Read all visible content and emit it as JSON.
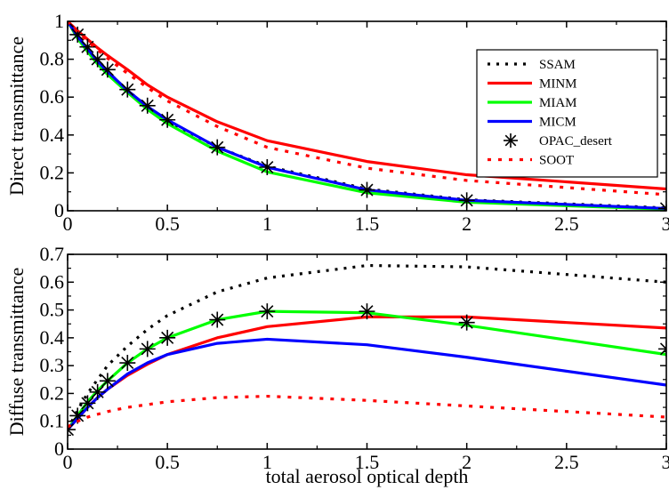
{
  "chart_data": [
    {
      "type": "line",
      "ylabel": "Direct transmittance",
      "xlabel": "",
      "xlim": [
        0,
        3
      ],
      "ylim": [
        0,
        1
      ],
      "x_ticks": [
        {
          "value": 0,
          "label": "0"
        },
        {
          "value": 0.5,
          "label": "0.5"
        },
        {
          "value": 1,
          "label": "1"
        },
        {
          "value": 1.5,
          "label": "1.5"
        },
        {
          "value": 2,
          "label": "2"
        },
        {
          "value": 2.5,
          "label": "2.5"
        },
        {
          "value": 3,
          "label": "3"
        }
      ],
      "y_ticks": [
        {
          "value": 0,
          "label": "0"
        },
        {
          "value": 0.2,
          "label": "0.2"
        },
        {
          "value": 0.4,
          "label": "0.4"
        },
        {
          "value": 0.6,
          "label": "0.6"
        },
        {
          "value": 0.8,
          "label": "0.8"
        },
        {
          "value": 1,
          "label": "1"
        }
      ],
      "legend_position": "right",
      "series": [
        {
          "name": "SSAM",
          "color": "#000000",
          "style": "dotted",
          "x": [
            0,
            0.05,
            0.1,
            0.15,
            0.2,
            0.3,
            0.4,
            0.5,
            0.75,
            1,
            1.5,
            2,
            3
          ],
          "y": [
            1.0,
            0.92,
            0.855,
            0.79,
            0.735,
            0.635,
            0.55,
            0.475,
            0.335,
            0.235,
            0.115,
            0.058,
            0.015
          ]
        },
        {
          "name": "MINM",
          "color": "#ff0000",
          "style": "solid",
          "x": [
            0,
            0.05,
            0.1,
            0.15,
            0.2,
            0.3,
            0.4,
            0.5,
            0.75,
            1,
            1.5,
            2,
            3
          ],
          "y": [
            1.0,
            0.95,
            0.905,
            0.86,
            0.82,
            0.745,
            0.665,
            0.6,
            0.47,
            0.37,
            0.26,
            0.19,
            0.115
          ]
        },
        {
          "name": "MIAM",
          "color": "#00ff00",
          "style": "solid",
          "x": [
            0,
            0.05,
            0.1,
            0.15,
            0.2,
            0.3,
            0.4,
            0.5,
            0.75,
            1,
            1.5,
            2,
            3
          ],
          "y": [
            1.0,
            0.91,
            0.84,
            0.775,
            0.72,
            0.625,
            0.535,
            0.46,
            0.315,
            0.205,
            0.095,
            0.045,
            0.008
          ]
        },
        {
          "name": "MICM",
          "color": "#0000ff",
          "style": "solid",
          "x": [
            0,
            0.05,
            0.1,
            0.15,
            0.2,
            0.3,
            0.4,
            0.5,
            0.75,
            1,
            1.5,
            2,
            3
          ],
          "y": [
            1.0,
            0.92,
            0.855,
            0.79,
            0.735,
            0.635,
            0.55,
            0.48,
            0.335,
            0.23,
            0.11,
            0.055,
            0.012
          ]
        },
        {
          "name": "OPAC_desert",
          "color": "#000000",
          "style": "markers",
          "x": [
            0,
            0.05,
            0.1,
            0.15,
            0.2,
            0.3,
            0.4,
            0.5,
            0.75,
            1,
            1.5,
            2,
            3
          ],
          "y": [
            1.0,
            0.93,
            0.865,
            0.8,
            0.745,
            0.64,
            0.555,
            0.48,
            0.335,
            0.23,
            0.11,
            0.055,
            0.012
          ]
        },
        {
          "name": "SOOT",
          "color": "#ff0000",
          "style": "dotted",
          "x": [
            0,
            0.05,
            0.1,
            0.15,
            0.2,
            0.3,
            0.4,
            0.5,
            0.75,
            1,
            1.5,
            2,
            3
          ],
          "y": [
            1.0,
            0.945,
            0.895,
            0.85,
            0.805,
            0.725,
            0.65,
            0.58,
            0.445,
            0.335,
            0.225,
            0.16,
            0.085
          ]
        }
      ]
    },
    {
      "type": "line",
      "ylabel": "Diffuse transmittance",
      "xlabel": "total aerosol optical depth",
      "xlim": [
        0,
        3
      ],
      "ylim": [
        0,
        0.7
      ],
      "x_ticks": [
        {
          "value": 0,
          "label": "0"
        },
        {
          "value": 0.5,
          "label": "0.5"
        },
        {
          "value": 1,
          "label": "1"
        },
        {
          "value": 1.5,
          "label": "1.5"
        },
        {
          "value": 2,
          "label": "2"
        },
        {
          "value": 2.5,
          "label": "2.5"
        },
        {
          "value": 3,
          "label": "3"
        }
      ],
      "y_ticks": [
        {
          "value": 0,
          "label": "0"
        },
        {
          "value": 0.1,
          "label": "0.1"
        },
        {
          "value": 0.2,
          "label": "0.2"
        },
        {
          "value": 0.3,
          "label": "0.3"
        },
        {
          "value": 0.4,
          "label": "0.4"
        },
        {
          "value": 0.5,
          "label": "0.5"
        },
        {
          "value": 0.6,
          "label": "0.6"
        },
        {
          "value": 0.7,
          "label": "0.7"
        }
      ],
      "series": [
        {
          "name": "SSAM",
          "color": "#000000",
          "style": "dotted",
          "x": [
            0,
            0.05,
            0.1,
            0.15,
            0.2,
            0.3,
            0.4,
            0.5,
            0.75,
            1,
            1.5,
            2,
            3
          ],
          "y": [
            0.07,
            0.14,
            0.2,
            0.25,
            0.3,
            0.37,
            0.43,
            0.48,
            0.565,
            0.615,
            0.66,
            0.655,
            0.6
          ]
        },
        {
          "name": "MINM",
          "color": "#ff0000",
          "style": "solid",
          "x": [
            0,
            0.05,
            0.1,
            0.15,
            0.2,
            0.3,
            0.4,
            0.5,
            0.75,
            1,
            1.5,
            2,
            3
          ],
          "y": [
            0.07,
            0.11,
            0.15,
            0.185,
            0.215,
            0.265,
            0.305,
            0.34,
            0.4,
            0.44,
            0.475,
            0.475,
            0.435
          ]
        },
        {
          "name": "MIAM",
          "color": "#00ff00",
          "style": "solid",
          "x": [
            0,
            0.05,
            0.1,
            0.15,
            0.2,
            0.3,
            0.4,
            0.5,
            0.75,
            1,
            1.5,
            2,
            3
          ],
          "y": [
            0.07,
            0.12,
            0.17,
            0.21,
            0.245,
            0.31,
            0.36,
            0.4,
            0.465,
            0.495,
            0.49,
            0.445,
            0.34
          ]
        },
        {
          "name": "MICM",
          "color": "#0000ff",
          "style": "solid",
          "x": [
            0,
            0.05,
            0.1,
            0.15,
            0.2,
            0.3,
            0.4,
            0.5,
            0.75,
            1,
            1.5,
            2,
            3
          ],
          "y": [
            0.07,
            0.11,
            0.15,
            0.185,
            0.215,
            0.27,
            0.31,
            0.34,
            0.38,
            0.395,
            0.375,
            0.33,
            0.23
          ]
        },
        {
          "name": "OPAC_desert",
          "color": "#000000",
          "style": "markers",
          "x": [
            0,
            0.05,
            0.1,
            0.15,
            0.2,
            0.3,
            0.4,
            0.5,
            0.75,
            1,
            1.5,
            2,
            3
          ],
          "y": [
            0.07,
            0.12,
            0.165,
            0.205,
            0.245,
            0.31,
            0.36,
            0.4,
            0.465,
            0.495,
            0.495,
            0.455,
            0.36
          ]
        },
        {
          "name": "SOOT",
          "color": "#ff0000",
          "style": "dotted",
          "x": [
            0,
            0.05,
            0.1,
            0.15,
            0.2,
            0.3,
            0.4,
            0.5,
            0.75,
            1,
            1.5,
            2,
            3
          ],
          "y": [
            0.08,
            0.1,
            0.115,
            0.125,
            0.135,
            0.15,
            0.16,
            0.17,
            0.185,
            0.19,
            0.175,
            0.155,
            0.115
          ]
        }
      ]
    }
  ]
}
